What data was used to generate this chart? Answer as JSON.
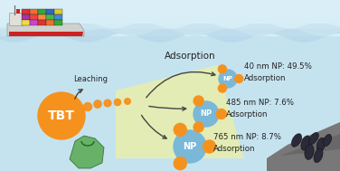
{
  "bg_color": "#c5e3ef",
  "sky_color": "#daeef7",
  "wave_color1": "#b8d8ea",
  "wave_color2": "#c8e4f0",
  "tbt_color": "#f5921e",
  "tbt_label": "TBT",
  "np_color": "#7ab8d8",
  "np_dot_color": "#f5921e",
  "arrow_color": "#444444",
  "text_color": "#222222",
  "label_40": "40 nm NP: 49.5%\nAdsorption",
  "label_485": "485 nm NP: 7.6%\nAdsorption",
  "label_765": "765 nm NP: 8.7%\nAdsorption",
  "leaching_label": "Leaching",
  "adsorption_label": "Adsorption",
  "highlight_color": "#eef0a0",
  "bag_color": "#5aaa55",
  "rock_color": "#808080",
  "mussel_color": "#2a2a3a",
  "ship_hull_color": "#d0d0cc",
  "ship_red_color": "#cc2222",
  "ship_gray_color": "#b8b8b4",
  "container_colors": [
    "#dd3333",
    "#f07030",
    "#33aa33",
    "#3366cc",
    "#ddcc22",
    "#aa33aa",
    "#ee4444",
    "#ff8844",
    "#44bb44",
    "#4488dd",
    "#eedd44",
    "#cc44cc"
  ]
}
